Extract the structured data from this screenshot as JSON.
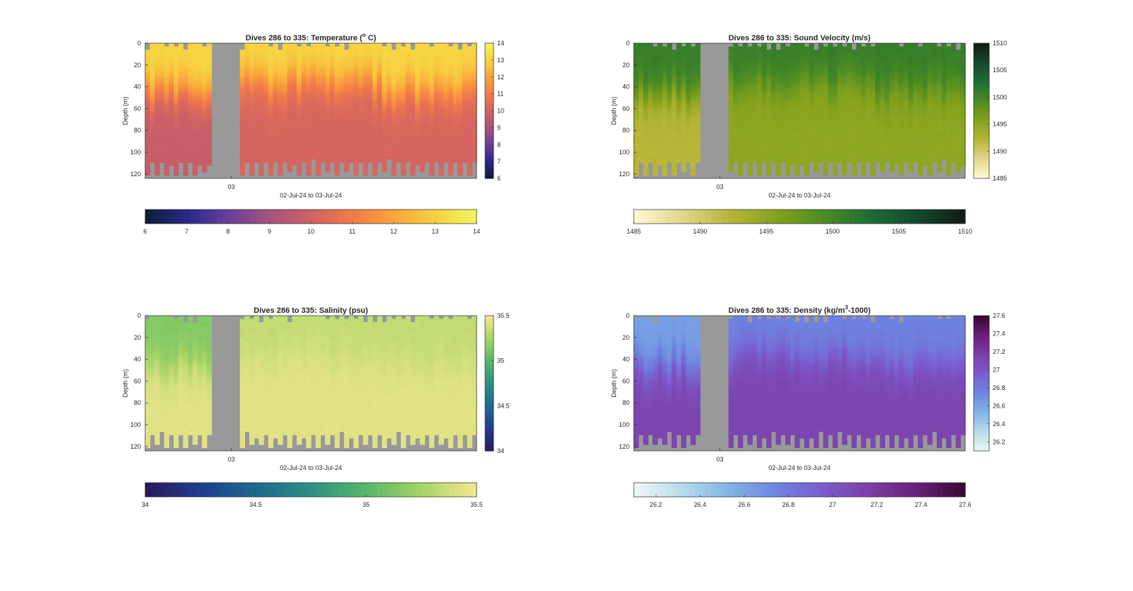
{
  "figure": {
    "xlabel": "02-Jul-24 to 03-Jul-24",
    "ylabel": "Depth (m)",
    "x_tick_label": "03"
  },
  "chart_data": [
    {
      "type": "heatmap",
      "title": "Dives 286 to 335: Temperature (",
      "title_sup": "o",
      "title_end": " C)",
      "xlabel": "02-Jul-24 to 03-Jul-24",
      "ylabel": "Depth (m)",
      "x_ticks": [
        "03"
      ],
      "y_ticks": [
        0,
        20,
        40,
        60,
        80,
        100,
        120
      ],
      "ylim": [
        0,
        124
      ],
      "colorbar_side": {
        "ticks": [
          6,
          7,
          8,
          9,
          10,
          11,
          12,
          13,
          14
        ],
        "range": [
          6,
          14
        ]
      },
      "colorbar_bottom": {
        "ticks": [
          6,
          7,
          8,
          9,
          10,
          11,
          12,
          13,
          14
        ],
        "range": [
          6,
          14
        ]
      },
      "colormap": [
        "#0b2036",
        "#2a2a8a",
        "#6a3f9c",
        "#a3557f",
        "#cf6164",
        "#f17a4a",
        "#f9a33b",
        "#f7cf3f",
        "#f2f25e"
      ],
      "profile": {
        "surface": 13.2,
        "deep": 10.2,
        "deep_left": 9.8
      }
    },
    {
      "type": "heatmap",
      "title": "Dives 286 to 335: Sound Velocity (m/s)",
      "xlabel": "02-Jul-24 to 03-Jul-24",
      "ylabel": "Depth (m)",
      "x_ticks": [
        "03"
      ],
      "y_ticks": [
        0,
        20,
        40,
        60,
        80,
        100,
        120
      ],
      "ylim": [
        0,
        124
      ],
      "colorbar_side": {
        "ticks": [
          1485,
          1490,
          1495,
          1500,
          1505,
          1510
        ],
        "range": [
          1485,
          1510
        ]
      },
      "colorbar_bottom": {
        "ticks": [
          1485,
          1490,
          1495,
          1500,
          1505,
          1510
        ],
        "range": [
          1485,
          1510
        ]
      },
      "colormap": [
        "#fdf8d2",
        "#e2d48b",
        "#b7b537",
        "#84a21d",
        "#4e8c22",
        "#1e6e35",
        "#154a2c",
        "#111e14"
      ],
      "profile": {
        "surface": 1501,
        "deep": 1495,
        "deep_left": 1492
      }
    },
    {
      "type": "heatmap",
      "title": "Dives 286 to 335: Salinity (psu)",
      "xlabel": "02-Jul-24 to 03-Jul-24",
      "ylabel": "Depth (m)",
      "x_ticks": [
        "03"
      ],
      "y_ticks": [
        0,
        20,
        40,
        60,
        80,
        100,
        120
      ],
      "ylim": [
        0,
        124
      ],
      "colorbar_side": {
        "ticks": [
          34,
          34.5,
          35,
          35.5
        ],
        "range": [
          34,
          35.5
        ]
      },
      "colorbar_bottom": {
        "ticks": [
          34,
          34.5,
          35,
          35.5
        ],
        "range": [
          34,
          35.5
        ]
      },
      "colormap": [
        "#2a1a5e",
        "#1f3f8f",
        "#1d6a8e",
        "#2e8f84",
        "#55b66a",
        "#a3d465",
        "#f0e68c"
      ],
      "profile": {
        "surface": 35.35,
        "deep": 35.45,
        "surface_left": 35.15
      }
    },
    {
      "type": "heatmap",
      "title": "Dives 286 to 335: Density (kg/m",
      "title_sup": "3",
      "title_end": "-1000)",
      "xlabel": "02-Jul-24 to 03-Jul-24",
      "ylabel": "Depth (m)",
      "x_ticks": [
        "03"
      ],
      "y_ticks": [
        0,
        20,
        40,
        60,
        80,
        100,
        120
      ],
      "ylim": [
        0,
        124
      ],
      "colorbar_side": {
        "ticks": [
          26.2,
          26.4,
          26.6,
          26.8,
          27,
          27.2,
          27.4,
          27.6
        ],
        "range": [
          26.1,
          27.6
        ]
      },
      "colorbar_bottom": {
        "ticks": [
          26.2,
          26.4,
          26.6,
          26.8,
          27,
          27.2,
          27.4,
          27.6
        ],
        "range": [
          26.1,
          27.6
        ]
      },
      "colormap": [
        "#edf5f7",
        "#b6daea",
        "#7fb4e6",
        "#6e84e0",
        "#7a5ccd",
        "#7d3ea6",
        "#6a1f7a",
        "#3b0a34"
      ],
      "profile": {
        "surface": 26.75,
        "deep": 27.12,
        "surface_left": 26.62
      }
    }
  ]
}
